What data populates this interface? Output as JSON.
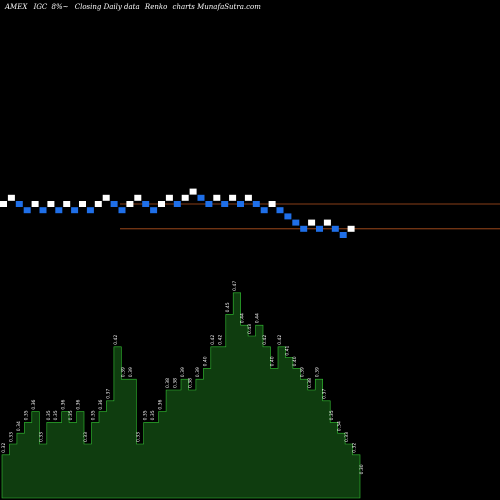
{
  "header": {
    "exchange": "AMEX",
    "symbol": "IGC",
    "suffix": "8%~",
    "description": "Closing Daily data",
    "chart_kind": "Renko",
    "site": "charts MunafaSutra.com"
  },
  "colors": {
    "up": "#ffffff",
    "down": "#1f6fe8",
    "level_line": "#b4531f",
    "volume_fill": "#0f3d0f",
    "volume_outline": "#33c433",
    "background": "#000000"
  },
  "chart_data": [
    {
      "type": "renko",
      "title": "AMEX IGC 8%~ Closing Daily data Renko charts MunafaSutra.com",
      "bricks": [
        {
          "dir": "up",
          "value": 4
        },
        {
          "dir": "up",
          "value": 5
        },
        {
          "dir": "down",
          "value": 4
        },
        {
          "dir": "down",
          "value": 3
        },
        {
          "dir": "up",
          "value": 4
        },
        {
          "dir": "down",
          "value": 3
        },
        {
          "dir": "up",
          "value": 4
        },
        {
          "dir": "down",
          "value": 3
        },
        {
          "dir": "up",
          "value": 4
        },
        {
          "dir": "down",
          "value": 3
        },
        {
          "dir": "up",
          "value": 4
        },
        {
          "dir": "down",
          "value": 3
        },
        {
          "dir": "up",
          "value": 4
        },
        {
          "dir": "up",
          "value": 5
        },
        {
          "dir": "down",
          "value": 4
        },
        {
          "dir": "down",
          "value": 3
        },
        {
          "dir": "up",
          "value": 4
        },
        {
          "dir": "up",
          "value": 5
        },
        {
          "dir": "down",
          "value": 4
        },
        {
          "dir": "down",
          "value": 3
        },
        {
          "dir": "up",
          "value": 4
        },
        {
          "dir": "up",
          "value": 5
        },
        {
          "dir": "down",
          "value": 4
        },
        {
          "dir": "up",
          "value": 5
        },
        {
          "dir": "up",
          "value": 6
        },
        {
          "dir": "down",
          "value": 5
        },
        {
          "dir": "down",
          "value": 4
        },
        {
          "dir": "up",
          "value": 5
        },
        {
          "dir": "down",
          "value": 4
        },
        {
          "dir": "up",
          "value": 5
        },
        {
          "dir": "down",
          "value": 4
        },
        {
          "dir": "up",
          "value": 5
        },
        {
          "dir": "down",
          "value": 4
        },
        {
          "dir": "down",
          "value": 3
        },
        {
          "dir": "up",
          "value": 4
        },
        {
          "dir": "down",
          "value": 3
        },
        {
          "dir": "down",
          "value": 2
        },
        {
          "dir": "down",
          "value": 1
        },
        {
          "dir": "down",
          "value": 0
        },
        {
          "dir": "up",
          "value": 1
        },
        {
          "dir": "down",
          "value": 0
        },
        {
          "dir": "up",
          "value": 1
        },
        {
          "dir": "down",
          "value": 0
        },
        {
          "dir": "down",
          "value": -1
        },
        {
          "dir": "up",
          "value": 0
        }
      ],
      "levels": [
        4,
        0
      ],
      "volume_labels": [
        "0.32",
        "0.33",
        "0.34",
        "0.35",
        "0.36",
        "0.33",
        "0.35",
        "0.35",
        "0.36",
        "0.35",
        "0.36",
        "0.33",
        "0.35",
        "0.36",
        "0.37",
        "0.42",
        "0.39",
        "0.39",
        "0.33",
        "0.35",
        "0.35",
        "0.36",
        "0.38",
        "0.38",
        "0.39",
        "0.38",
        "0.39",
        "0.40",
        "0.42",
        "0.42",
        "0.45",
        "0.47",
        "0.44",
        "0.43",
        "0.44",
        "0.42",
        "0.40",
        "0.42",
        "0.41",
        "0.40",
        "0.39",
        "0.38",
        "0.39",
        "0.37",
        "0.35",
        "0.34",
        "0.33",
        "0.32",
        "0.30"
      ],
      "volume_values": [
        0.32,
        0.33,
        0.34,
        0.35,
        0.36,
        0.33,
        0.35,
        0.35,
        0.36,
        0.35,
        0.36,
        0.33,
        0.35,
        0.36,
        0.37,
        0.42,
        0.39,
        0.39,
        0.33,
        0.35,
        0.35,
        0.36,
        0.38,
        0.38,
        0.39,
        0.38,
        0.39,
        0.4,
        0.42,
        0.42,
        0.45,
        0.47,
        0.44,
        0.43,
        0.44,
        0.42,
        0.4,
        0.42,
        0.41,
        0.4,
        0.39,
        0.38,
        0.39,
        0.37,
        0.35,
        0.34,
        0.33,
        0.32,
        0.3
      ],
      "grid": false
    }
  ]
}
